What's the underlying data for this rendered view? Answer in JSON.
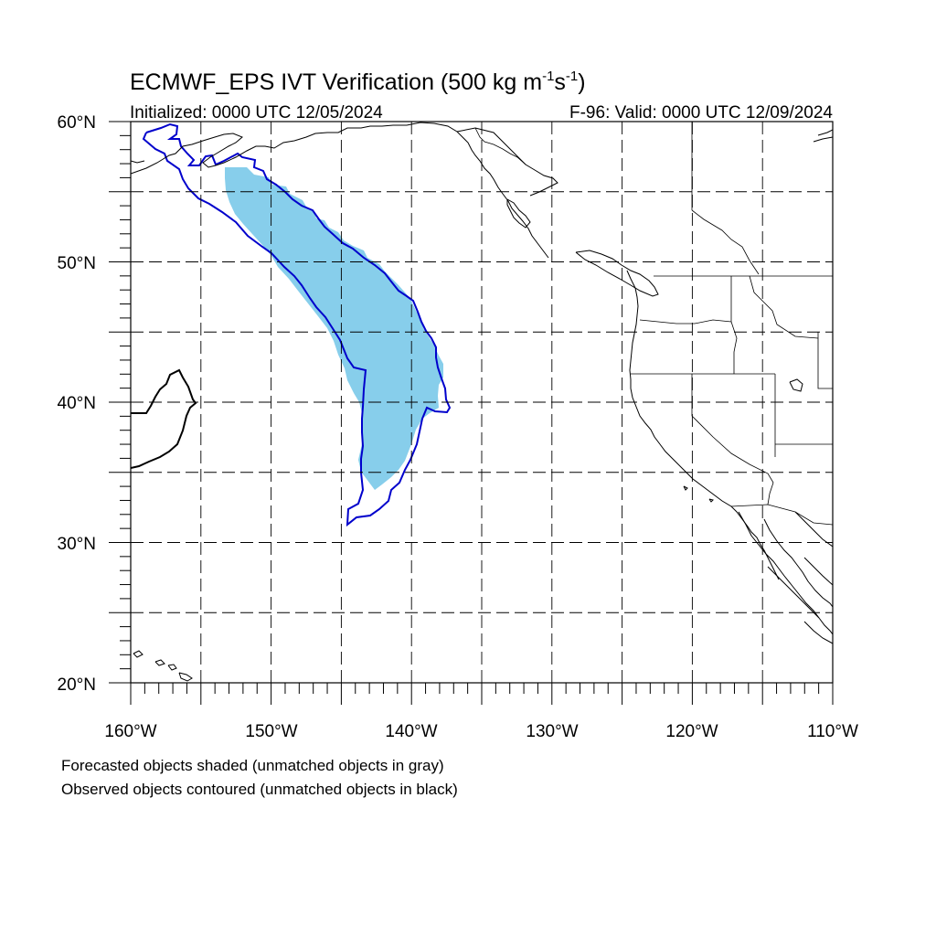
{
  "title": {
    "main": "ECMWF_EPS IVT Verification (500 kg m",
    "sup1": "-1",
    "mid": "s",
    "sup2": "-1",
    "close": ")"
  },
  "subtitle_left": "Initialized: 0000 UTC 12/05/2024",
  "subtitle_right": "F-96: Valid: 0000 UTC 12/09/2024",
  "lat_labels": [
    "60°N",
    "50°N",
    "40°N",
    "30°N",
    "20°N"
  ],
  "lon_labels": [
    "160°W",
    "150°W",
    "140°W",
    "130°W",
    "120°W",
    "110°W"
  ],
  "legend": [
    "Forecasted objects shaded (unmatched objects in gray)",
    "Observed objects contoured (unmatched objects in black)"
  ],
  "map": {
    "lon_range": [
      -160,
      -110
    ],
    "lat_range": [
      20,
      60
    ],
    "grid_interval_deg": 5,
    "grid_style": "dashed",
    "colors": {
      "forecast_matched_fill": "#87ceeb",
      "observed_matched_contour": "#0000cc",
      "observed_unmatched_contour": "#000000",
      "coastline": "#000000"
    }
  }
}
